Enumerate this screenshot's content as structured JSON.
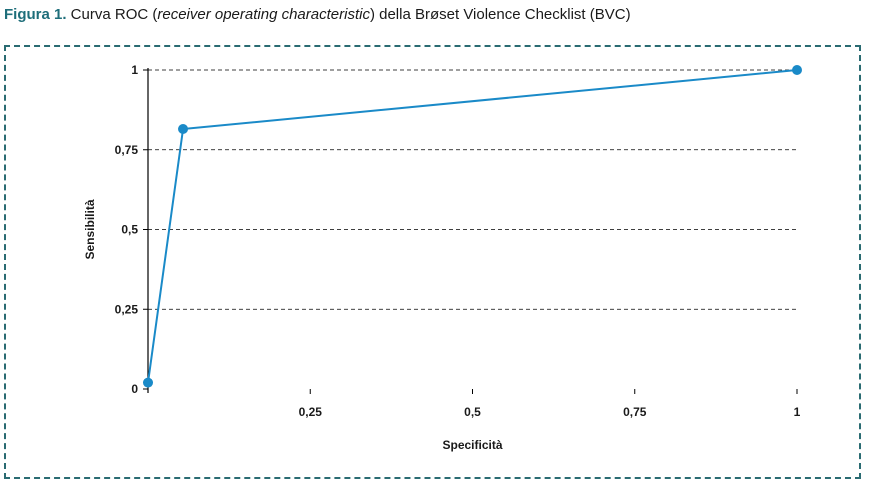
{
  "caption": {
    "figure_label": "Figura 1.",
    "text_before": " Curva ROC (",
    "text_italic": "receiver operating characteristic",
    "text_after": ") della Brøset Violence Checklist (BVC)"
  },
  "colors": {
    "frame": "#2a6b72",
    "caption_label": "#1e6e7a",
    "line": "#1a8ac8",
    "axis": "#000000",
    "grid": "#000000"
  },
  "chart_data": {
    "type": "line",
    "title": "",
    "xlabel": "Specificità",
    "ylabel": "Sensibilità",
    "xlim": [
      0,
      1
    ],
    "ylim": [
      0,
      1
    ],
    "x_ticks": [
      0.25,
      0.5,
      0.75,
      1
    ],
    "x_tick_labels": [
      "0,25",
      "0,5",
      "0,75",
      "1"
    ],
    "y_ticks": [
      0,
      0.25,
      0.5,
      0.75,
      1
    ],
    "y_tick_labels": [
      "0",
      "0,25",
      "0,5",
      "0,75",
      "1"
    ],
    "grid": "horizontal dashed",
    "series": [
      {
        "x": [
          0,
          0.054,
          1
        ],
        "y": [
          0.02,
          0.815,
          1
        ]
      }
    ]
  }
}
